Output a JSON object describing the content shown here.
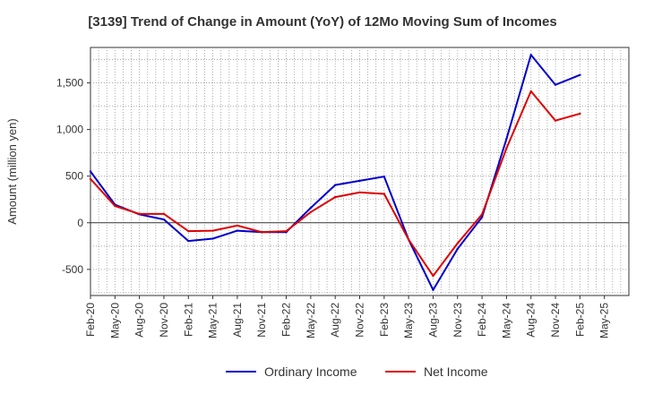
{
  "chart_data": {
    "type": "line",
    "title": "[3139]  Trend of Change in Amount (YoY) of 12Mo Moving Sum of Incomes",
    "ylabel": "Amount (million yen)",
    "xlabel": "",
    "ylim": [
      -780,
      1880
    ],
    "yticks": [
      -500,
      0,
      500,
      1000,
      1500
    ],
    "ytick_labels": [
      "-500",
      "0",
      "500",
      "1,000",
      "1,500"
    ],
    "x": [
      "Feb-20",
      "May-20",
      "Aug-20",
      "Nov-20",
      "Feb-21",
      "May-21",
      "Aug-21",
      "Nov-21",
      "Feb-22",
      "May-22",
      "Aug-22",
      "Nov-22",
      "Feb-23",
      "May-23",
      "Aug-23",
      "Nov-23",
      "Feb-24",
      "May-24",
      "Aug-24",
      "Nov-24",
      "Feb-25",
      "May-25"
    ],
    "grid": true,
    "legend_position": "bottom",
    "series": [
      {
        "name": "Ordinary Income",
        "color": "#0000cc",
        "values": [
          550,
          195,
          90,
          35,
          -195,
          -170,
          -85,
          -100,
          -100,
          160,
          405,
          450,
          495,
          -180,
          -720,
          -280,
          60,
          900,
          1800,
          1480,
          1585,
          null
        ]
      },
      {
        "name": "Net Income",
        "color": "#dd0000",
        "values": [
          470,
          180,
          95,
          95,
          -90,
          -85,
          -30,
          -100,
          -90,
          115,
          275,
          325,
          310,
          -180,
          -570,
          -220,
          90,
          800,
          1410,
          1095,
          1170,
          null
        ]
      }
    ]
  }
}
